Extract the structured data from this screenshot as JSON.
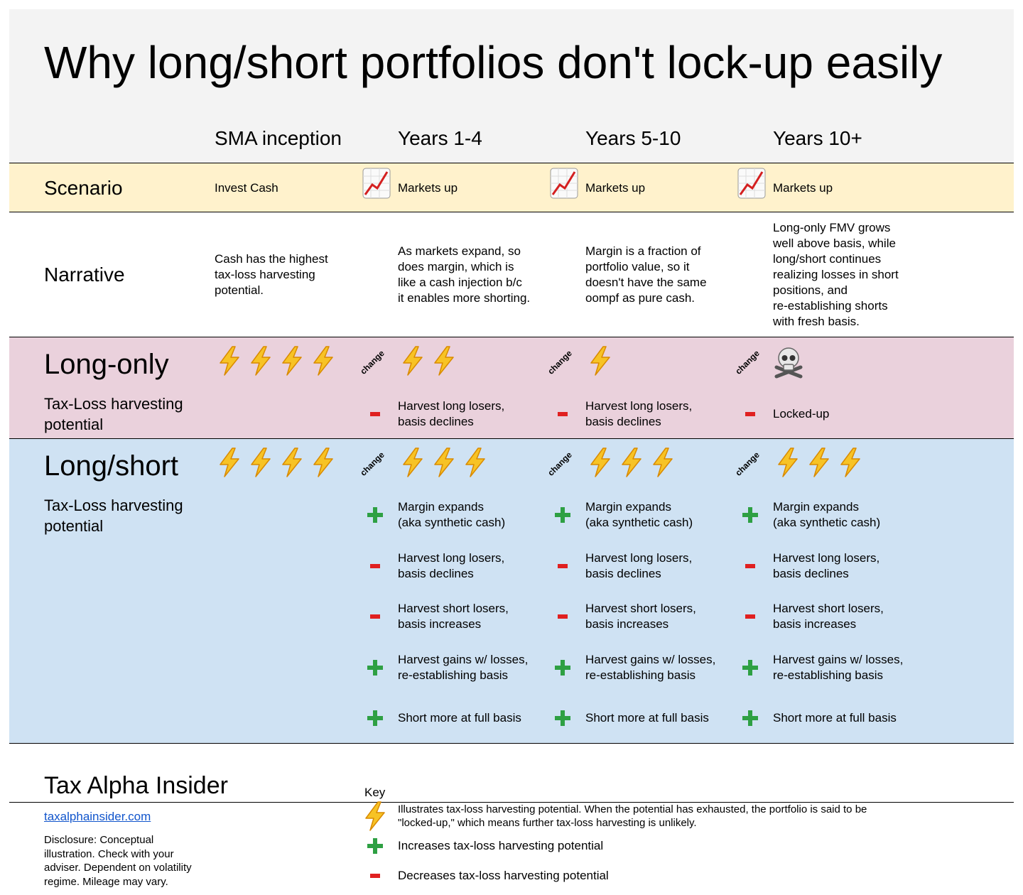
{
  "title": "Why long/short portfolios don't lock-up easily",
  "columns": [
    "SMA inception",
    "Years 1-4",
    "Years 5-10",
    "Years 10+"
  ],
  "change_label": "change",
  "rows": {
    "scenario": {
      "label": "Scenario",
      "color": "#fff2cc",
      "cells": [
        {
          "text": "Invest Cash"
        },
        {
          "text": "Markets up",
          "icon": "chart"
        },
        {
          "text": "Markets up",
          "icon": "chart"
        },
        {
          "text": "Markets up",
          "icon": "chart"
        }
      ]
    },
    "narrative": {
      "label": "Narrative",
      "cells": [
        {
          "text": "Cash has the highest\ntax-loss harvesting\npotential."
        },
        {
          "text": "As markets expand, so\ndoes margin, which is\nlike a cash injection b/c\nit enables more shorting."
        },
        {
          "text": "Margin is a fraction of\nportfolio value, so it\ndoesn't have the same\noompf as pure cash."
        },
        {
          "text": "Long-only FMV grows\nwell above basis, while\nlong/short continues\nrealizing losses in short\npositions, and\nre-establishing shorts\nwith fresh basis."
        }
      ]
    },
    "long_only": {
      "label": "Long-only",
      "sublabel": "Tax-Loss harvesting\npotential",
      "color": "#ead1dc",
      "cells": [
        {
          "bolts": 4,
          "change": false,
          "items": []
        },
        {
          "bolts": 2,
          "change": true,
          "items": [
            {
              "sign": "minus",
              "text": "Harvest long losers,\nbasis declines"
            }
          ]
        },
        {
          "bolts": 1,
          "change": true,
          "items": [
            {
              "sign": "minus",
              "text": "Harvest long losers,\nbasis declines"
            }
          ]
        },
        {
          "bolts": 0,
          "icon": "skull",
          "change": true,
          "items": [
            {
              "sign": "minus",
              "text": "Locked-up"
            }
          ]
        }
      ]
    },
    "long_short": {
      "label": "Long/short",
      "sublabel": "Tax-Loss harvesting\npotential",
      "color": "#cfe2f3",
      "cells": [
        {
          "bolts": 4,
          "change": false,
          "items": []
        },
        {
          "bolts": 3,
          "change": true,
          "items": [
            {
              "sign": "plus",
              "text": "Margin expands\n(aka synthetic cash)"
            },
            {
              "sign": "minus",
              "text": "Harvest long losers,\nbasis declines"
            },
            {
              "sign": "minus",
              "text": "Harvest short losers,\nbasis increases"
            },
            {
              "sign": "plus",
              "text": "Harvest gains w/ losses,\nre-establishing basis"
            },
            {
              "sign": "plus",
              "text": "Short more at full basis"
            }
          ]
        },
        {
          "bolts": 3,
          "change": true,
          "items": [
            {
              "sign": "plus",
              "text": "Margin expands\n(aka synthetic cash)"
            },
            {
              "sign": "minus",
              "text": "Harvest long losers,\nbasis declines"
            },
            {
              "sign": "minus",
              "text": "Harvest short losers,\nbasis increases"
            },
            {
              "sign": "plus",
              "text": "Harvest gains w/ losses,\nre-establishing basis"
            },
            {
              "sign": "plus",
              "text": "Short more at full basis"
            }
          ]
        },
        {
          "bolts": 3,
          "change": true,
          "items": [
            {
              "sign": "plus",
              "text": "Margin expands\n(aka synthetic cash)"
            },
            {
              "sign": "minus",
              "text": "Harvest long losers,\nbasis declines"
            },
            {
              "sign": "minus",
              "text": "Harvest short losers,\nbasis increases"
            },
            {
              "sign": "plus",
              "text": "Harvest gains w/ losses,\nre-establishing basis"
            },
            {
              "sign": "plus",
              "text": "Short more at full basis"
            }
          ]
        }
      ]
    }
  },
  "footer": {
    "brand": "Tax Alpha Insider",
    "link": "taxalphainsider.com",
    "disclosure": "Disclosure: Conceptual\nillustration. Check with your\nadviser. Dependent on volatility\nregime. Mileage may vary."
  },
  "key": {
    "title": "Key",
    "items": [
      {
        "icon": "bolt",
        "text": "Illustrates tax-loss harvesting potential. When the potential has exhausted, the portfolio is said to be\n\"locked-up,\" which means further tax-loss harvesting is unlikely."
      },
      {
        "icon": "plus",
        "text": "Increases tax-loss harvesting potential"
      },
      {
        "icon": "minus",
        "text": "Decreases tax-loss harvesting potential"
      }
    ]
  }
}
